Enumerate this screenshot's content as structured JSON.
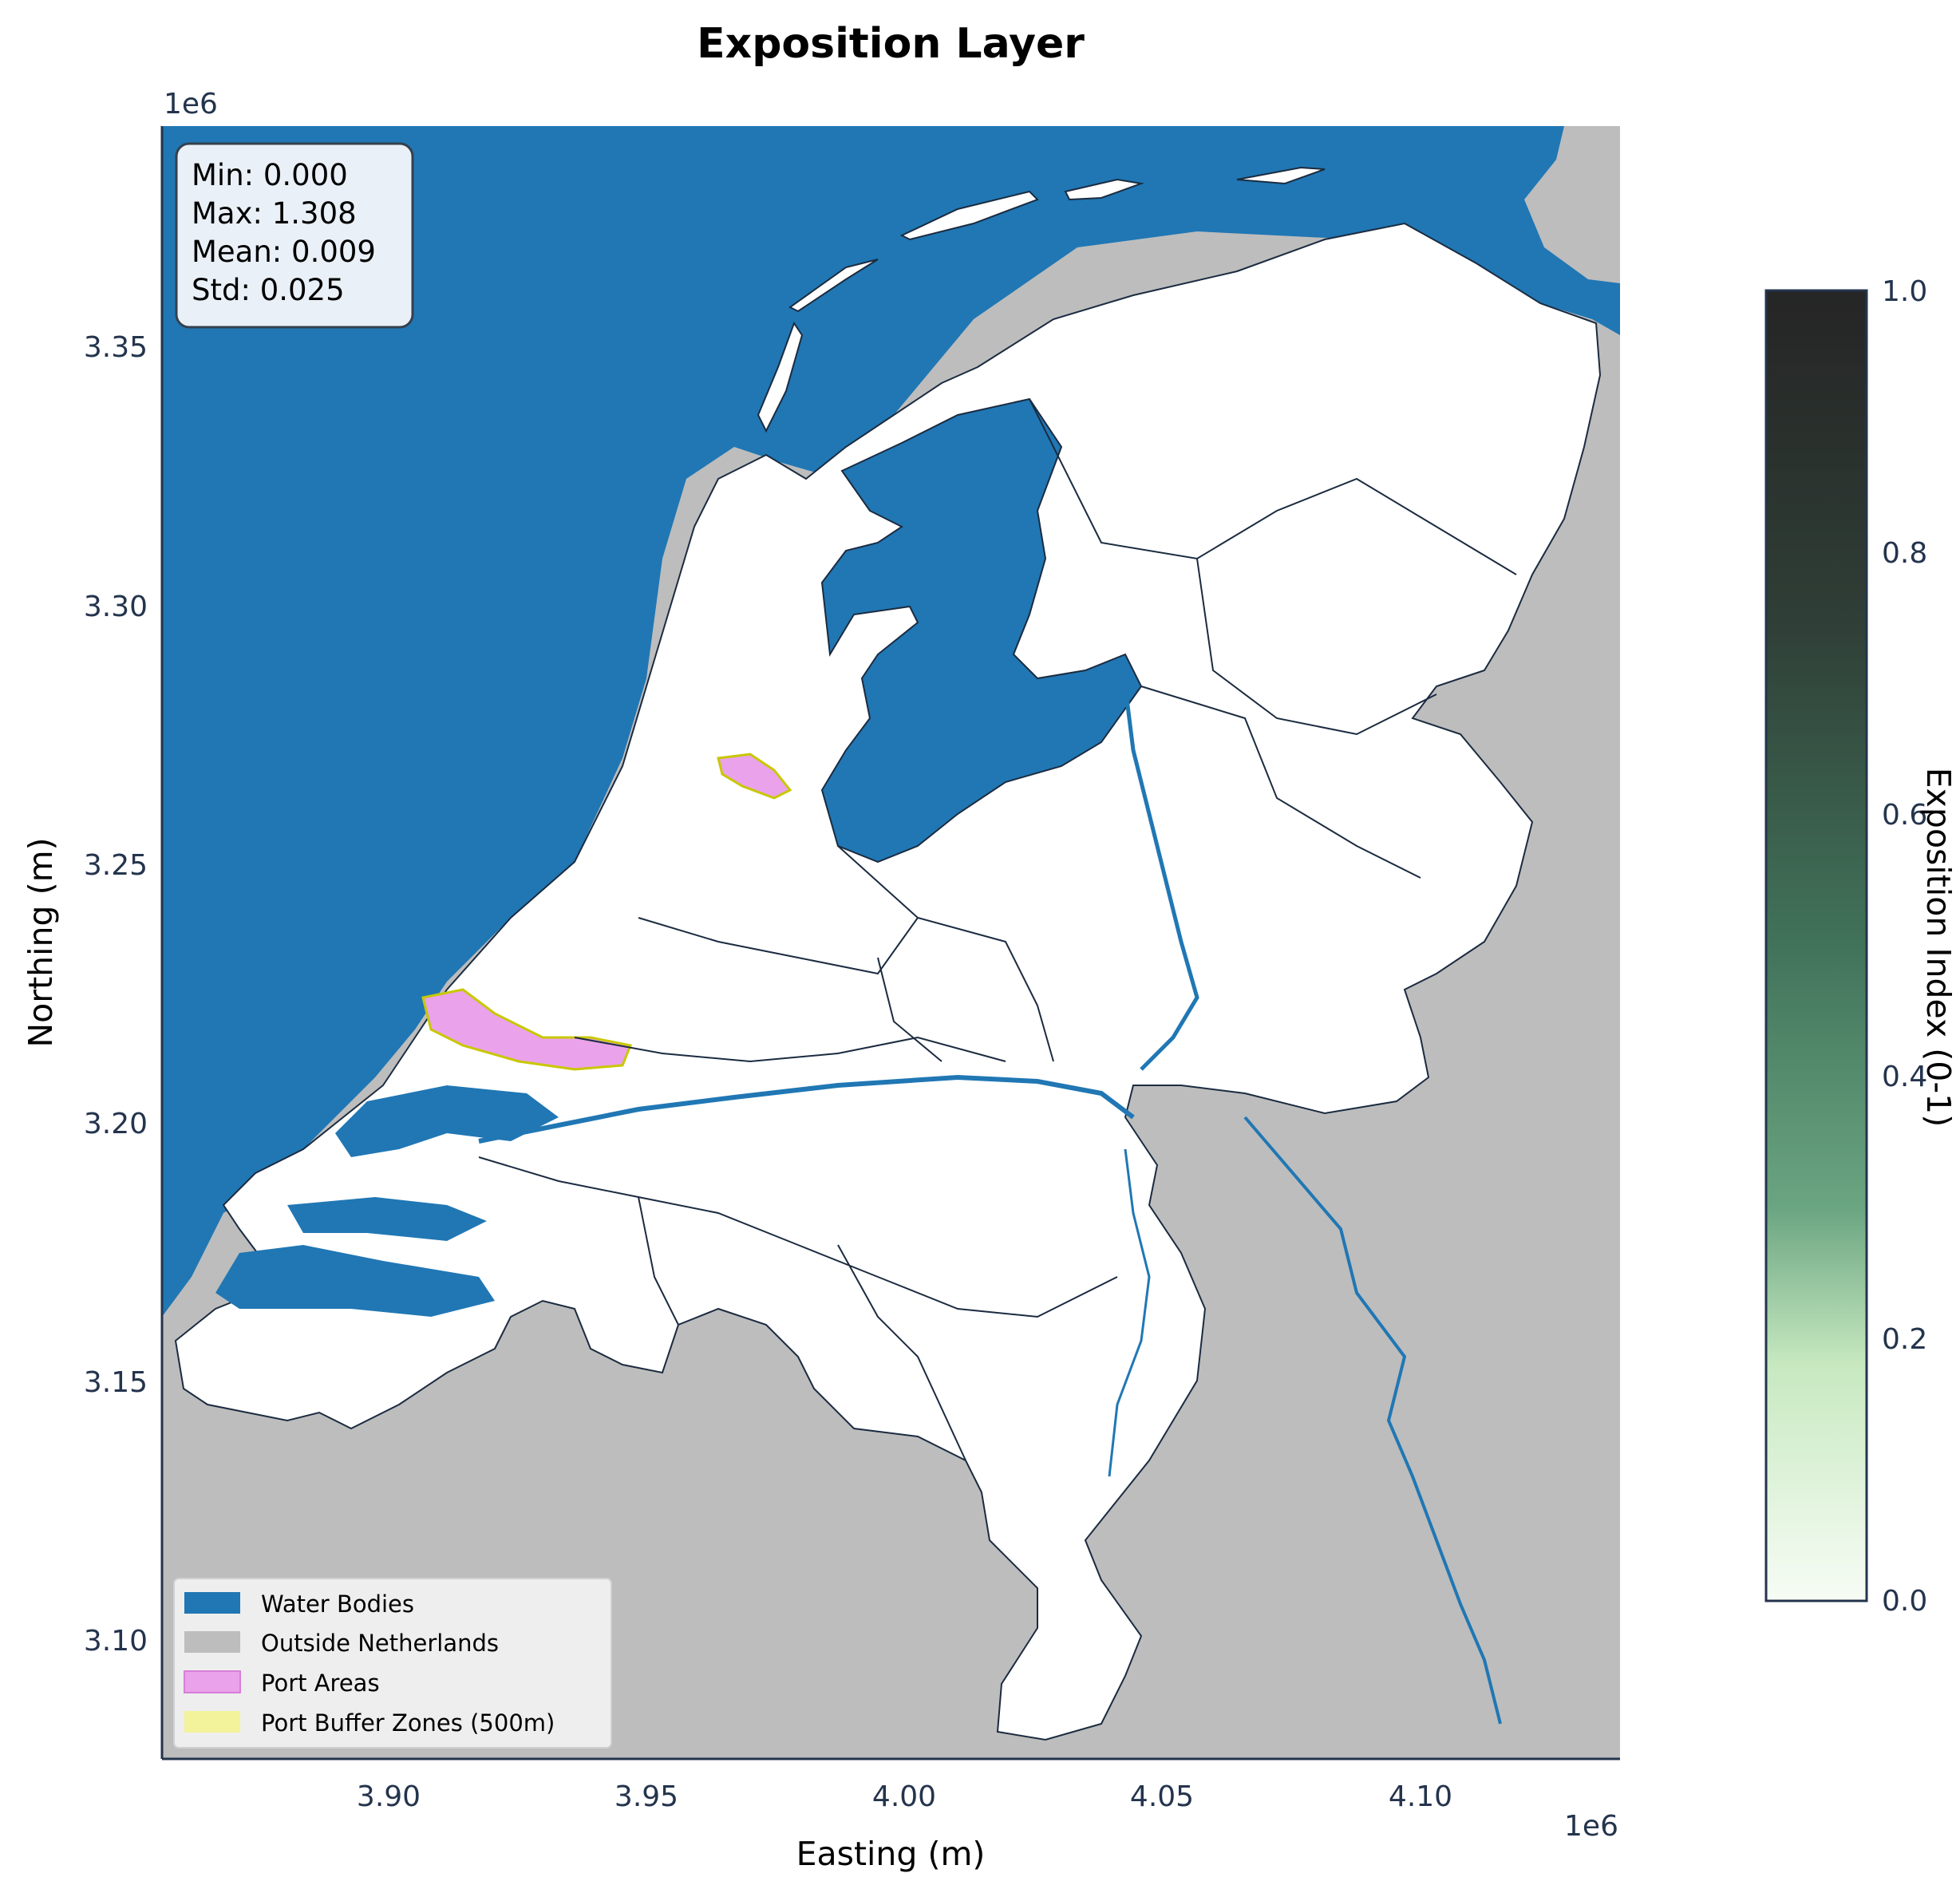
{
  "title": "Exposition Layer",
  "axes": {
    "xlabel": "Easting (m)",
    "ylabel": "Northing (m)",
    "x_offset": "1e6",
    "y_offset": "1e6",
    "x_ticks": [
      "3.90",
      "3.95",
      "4.00",
      "4.05",
      "4.10"
    ],
    "y_ticks": [
      "3.35",
      "3.30",
      "3.25",
      "3.20",
      "3.15",
      "3.10"
    ]
  },
  "stats": {
    "min": "Min: 0.000",
    "max": "Max: 1.308",
    "mean": "Mean: 0.009",
    "std": "Std: 0.025"
  },
  "legend": [
    {
      "label": "Water Bodies",
      "color": "#2077b4"
    },
    {
      "label": "Outside Netherlands",
      "color": "#bdbdbd"
    },
    {
      "label": "Port Areas",
      "color": "#eaa2ea"
    },
    {
      "label": "Port Buffer Zones (500m)",
      "color": "#f3f39b"
    }
  ],
  "colorbar": {
    "label": "Exposition Index (0-1)",
    "ticks": [
      "1.0",
      "0.8",
      "0.6",
      "0.4",
      "0.2",
      "0.0"
    ],
    "range": [
      0,
      1
    ],
    "colors": [
      "#f7fcf5",
      "#c7e9c0",
      "#74c476",
      "#41735a",
      "#2f3e36",
      "#252525"
    ]
  },
  "colors": {
    "water": "#2077b4",
    "outside": "#bdbdbd",
    "land": "#ffffff",
    "axis": "#24344d"
  }
}
